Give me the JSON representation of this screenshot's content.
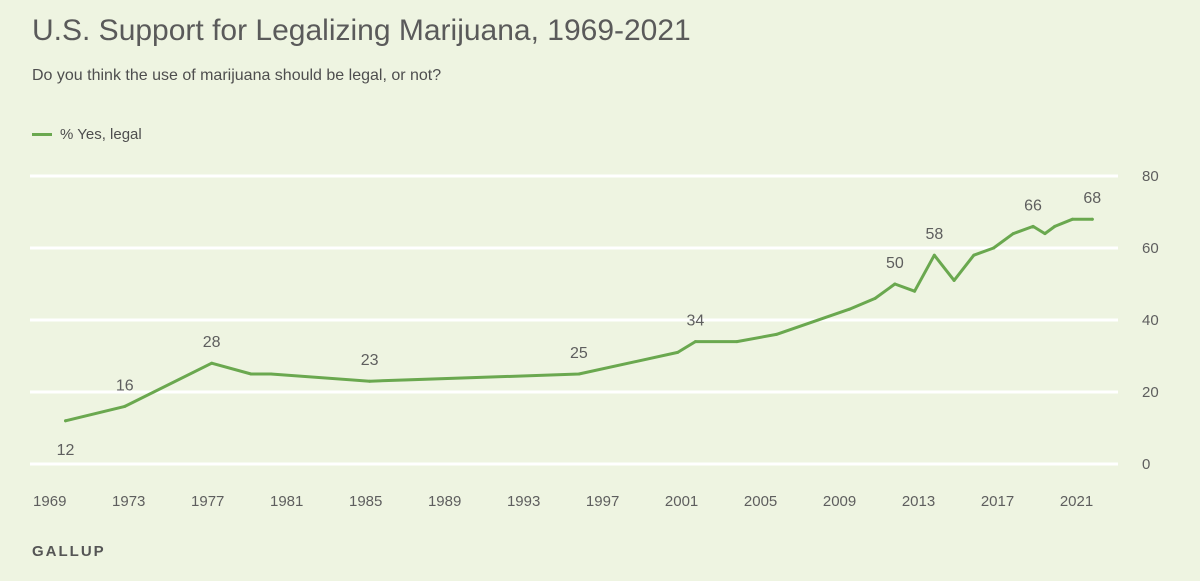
{
  "header": {
    "title": "U.S. Support for Legalizing Marijuana, 1969-2021",
    "subtitle": "Do you think the use of marijuana should be legal, or not?"
  },
  "legend": {
    "label": "% Yes, legal"
  },
  "footer": {
    "source": "GALLUP"
  },
  "colors": {
    "line": "#6aa84f",
    "grid": "#ffffff",
    "background": "#eef4e1"
  },
  "chart_data": {
    "type": "line",
    "title": "U.S. Support for Legalizing Marijuana, 1969-2021",
    "subtitle": "Do you think the use of marijuana should be legal, or not?",
    "xlabel": "",
    "ylabel": "",
    "xlim": [
      1968,
      2023
    ],
    "ylim": [
      0,
      80
    ],
    "x_ticks": [
      1969,
      1973,
      1977,
      1981,
      1985,
      1989,
      1993,
      1997,
      2001,
      2005,
      2009,
      2013,
      2017,
      2021
    ],
    "y_ticks": [
      0,
      20,
      40,
      60,
      80
    ],
    "grid": true,
    "legend_position": "top-left",
    "series": [
      {
        "name": "% Yes, legal",
        "x": [
          1969.8,
          1972.8,
          1977.2,
          1979.2,
          1980.2,
          1985.2,
          1995.8,
          2000.8,
          2001.7,
          2003.8,
          2005.8,
          2009.5,
          2010.8,
          2011.8,
          2012.8,
          2013.8,
          2014.8,
          2015.8,
          2016.8,
          2017.8,
          2018.8,
          2019.4,
          2019.9,
          2020.8,
          2021.8
        ],
        "values": [
          12,
          16,
          28,
          25,
          25,
          23,
          25,
          31,
          34,
          34,
          36,
          43,
          46,
          50,
          48,
          58,
          51,
          58,
          60,
          64,
          66,
          64,
          66,
          68,
          68
        ]
      }
    ],
    "data_labels": [
      {
        "x": 1969.8,
        "value": 12,
        "text": "12",
        "position": "below"
      },
      {
        "x": 1972.8,
        "value": 16,
        "text": "16",
        "position": "above"
      },
      {
        "x": 1977.2,
        "value": 28,
        "text": "28",
        "position": "above"
      },
      {
        "x": 1985.2,
        "value": 23,
        "text": "23",
        "position": "above"
      },
      {
        "x": 1995.8,
        "value": 25,
        "text": "25",
        "position": "above"
      },
      {
        "x": 2001.7,
        "value": 34,
        "text": "34",
        "position": "above"
      },
      {
        "x": 2011.8,
        "value": 50,
        "text": "50",
        "position": "above"
      },
      {
        "x": 2013.8,
        "value": 58,
        "text": "58",
        "position": "above"
      },
      {
        "x": 2018.8,
        "value": 66,
        "text": "66",
        "position": "above"
      },
      {
        "x": 2021.8,
        "value": 68,
        "text": "68",
        "position": "above"
      }
    ]
  }
}
